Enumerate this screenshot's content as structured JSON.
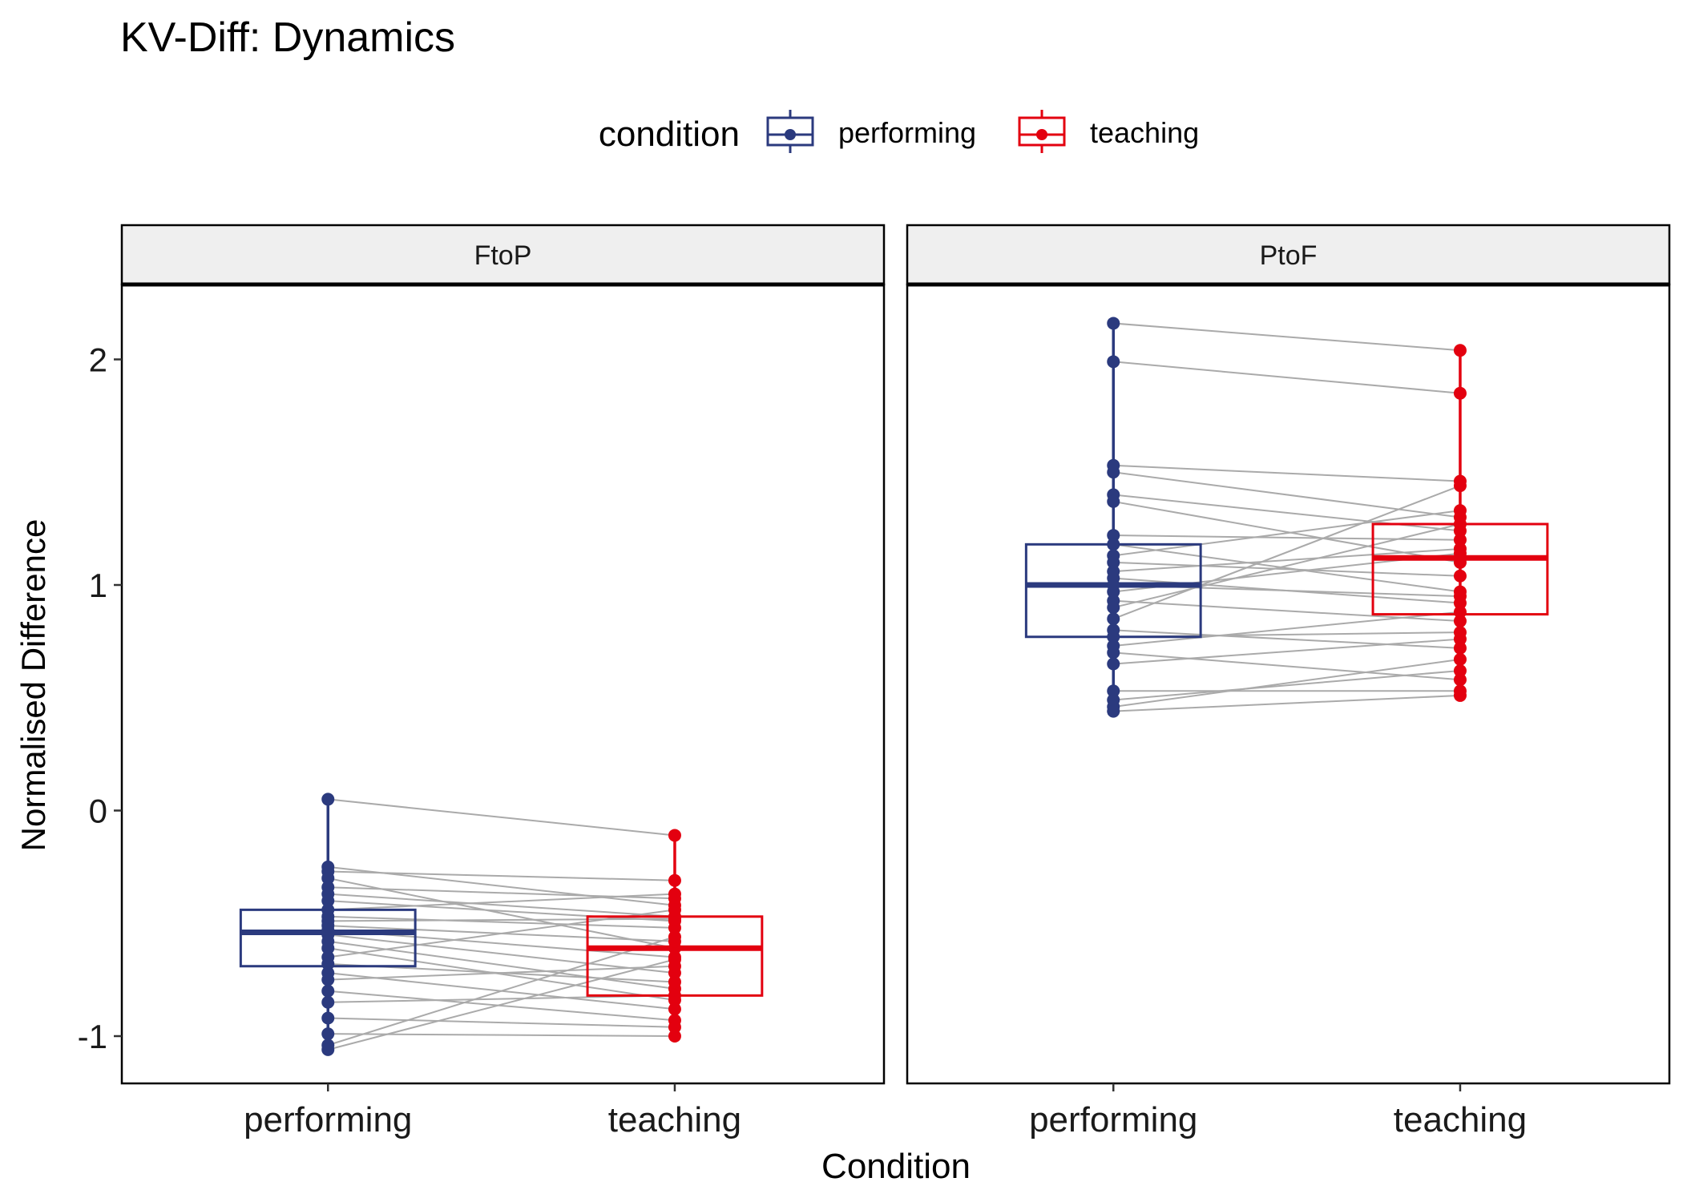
{
  "chart_data": {
    "type": "box",
    "title": "KV-Diff: Dynamics",
    "xlabel": "Condition",
    "ylabel": "Normalised Difference",
    "ylim": [
      -1.2,
      2.3
    ],
    "yticks": [
      2,
      1,
      0,
      -1
    ],
    "ytick_labels": [
      "2",
      "1",
      "0",
      "-1"
    ],
    "categories": [
      "performing",
      "teaching"
    ],
    "legend": {
      "title": "condition",
      "position": "top",
      "entries": [
        {
          "label": "performing",
          "color": "#2b3a7e"
        },
        {
          "label": "teaching",
          "color": "#e3000f"
        }
      ]
    },
    "grid": false,
    "panels": [
      {
        "name": "FtoP",
        "boxes": [
          {
            "condition": "performing",
            "q1": -0.69,
            "median": -0.54,
            "q3": -0.44
          },
          {
            "condition": "teaching",
            "q1": -0.82,
            "median": -0.61,
            "q3": -0.47
          }
        ],
        "pairs": [
          [
            0.05,
            -0.11
          ],
          [
            -0.25,
            -0.42
          ],
          [
            -0.27,
            -0.31
          ],
          [
            -0.3,
            -0.61
          ],
          [
            -0.34,
            -0.39
          ],
          [
            -0.37,
            -0.47
          ],
          [
            -0.4,
            -0.49
          ],
          [
            -0.44,
            -0.37
          ],
          [
            -0.47,
            -0.52
          ],
          [
            -0.49,
            -0.48
          ],
          [
            -0.51,
            -0.58
          ],
          [
            -0.53,
            -0.65
          ],
          [
            -0.55,
            -0.72
          ],
          [
            -0.58,
            -0.79
          ],
          [
            -0.61,
            -0.84
          ],
          [
            -0.65,
            -0.44
          ],
          [
            -0.68,
            -0.76
          ],
          [
            -0.72,
            -0.88
          ],
          [
            -0.75,
            -0.69
          ],
          [
            -0.8,
            -0.93
          ],
          [
            -0.85,
            -0.82
          ],
          [
            -0.92,
            -0.96
          ],
          [
            -0.99,
            -1.0
          ],
          [
            -1.04,
            -0.56
          ],
          [
            -1.06,
            -0.66
          ]
        ]
      },
      {
        "name": "PtoF",
        "boxes": [
          {
            "condition": "performing",
            "q1": 0.77,
            "median": 1.0,
            "q3": 1.18
          },
          {
            "condition": "teaching",
            "q1": 0.87,
            "median": 1.12,
            "q3": 1.27
          }
        ],
        "pairs": [
          [
            2.16,
            2.04
          ],
          [
            1.99,
            1.85
          ],
          [
            1.53,
            1.46
          ],
          [
            1.5,
            1.3
          ],
          [
            1.4,
            1.24
          ],
          [
            1.37,
            1.1
          ],
          [
            1.22,
            1.2
          ],
          [
            1.18,
            0.97
          ],
          [
            1.13,
            1.33
          ],
          [
            1.1,
            1.04
          ],
          [
            1.06,
            1.16
          ],
          [
            1.03,
            0.92
          ],
          [
            1.0,
            0.95
          ],
          [
            0.97,
            1.14
          ],
          [
            0.93,
            0.84
          ],
          [
            0.9,
            1.27
          ],
          [
            0.85,
            1.44
          ],
          [
            0.8,
            0.72
          ],
          [
            0.77,
            0.79
          ],
          [
            0.73,
            0.88
          ],
          [
            0.7,
            0.58
          ],
          [
            0.65,
            0.76
          ],
          [
            0.53,
            0.53
          ],
          [
            0.49,
            0.62
          ],
          [
            0.46,
            0.67
          ],
          [
            0.44,
            0.51
          ]
        ]
      }
    ]
  }
}
